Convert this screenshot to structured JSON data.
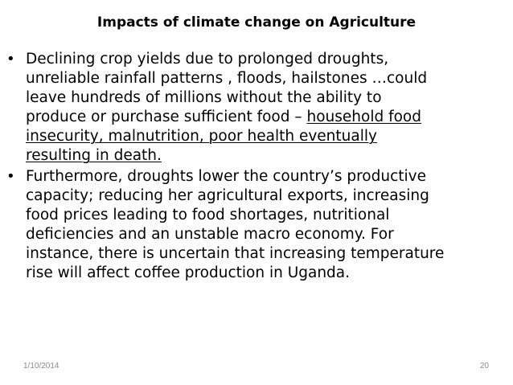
{
  "slide": {
    "title": "Impacts of climate change on Agriculture",
    "bullet_symbol": "•",
    "bullets": [
      {
        "lines": [
          [
            "Declining crop yields due to prolonged droughts,"
          ],
          [
            "unreliable rainfall patterns , floods, hailstones …could"
          ],
          [
            "leave hundreds of millions without the ability to"
          ],
          [
            "produce or purchase sufficient food – ",
            "household food"
          ],
          [
            "insecurity, malnutrition, poor health eventually"
          ],
          [
            "resulting in death."
          ]
        ]
      },
      {
        "lines": [
          [
            "Furthermore, droughts lower the country’s productive"
          ],
          [
            "capacity; reducing her agricultural exports, increasing"
          ],
          [
            "food prices leading to food shortages, nutritional"
          ],
          [
            "deficiencies and an unstable macro economy. For"
          ],
          [
            "instance, there is uncertain that increasing temperature"
          ],
          [
            "rise will affect coffee production in Uganda."
          ]
        ]
      }
    ],
    "footer": {
      "date": "1/10/2014",
      "page_number": "20"
    }
  }
}
